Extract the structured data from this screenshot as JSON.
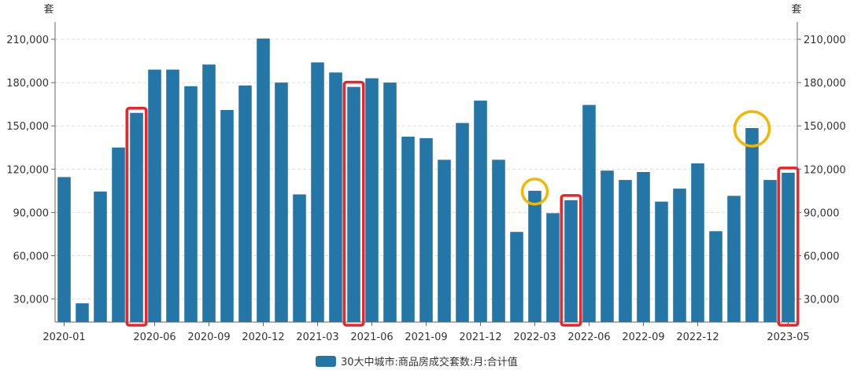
{
  "chart_data": {
    "type": "bar",
    "unit_left": "套",
    "unit_right": "套",
    "ylim": [
      14000,
      222000
    ],
    "y_ticks": [
      30000,
      60000,
      90000,
      120000,
      150000,
      180000,
      210000
    ],
    "y_tick_labels": [
      "30,000",
      "60,000",
      "90,000",
      "120,000",
      "150,000",
      "180,000",
      "210,000"
    ],
    "x_tick_labels": [
      "2020-01",
      "2020-06",
      "2020-09",
      "2020-12",
      "2021-03",
      "2021-06",
      "2021-09",
      "2021-12",
      "2022-03",
      "2022-06",
      "2022-09",
      "2022-12",
      "2023-05"
    ],
    "x_tick_months": [
      "2020-01",
      "2020-06",
      "2020-09",
      "2020-12",
      "2021-03",
      "2021-06",
      "2021-09",
      "2021-12",
      "2022-03",
      "2022-06",
      "2022-09",
      "2022-12",
      "2023-05"
    ],
    "categories": [
      "2020-01",
      "2020-02",
      "2020-03",
      "2020-04",
      "2020-05",
      "2020-06",
      "2020-07",
      "2020-08",
      "2020-09",
      "2020-10",
      "2020-11",
      "2020-12",
      "2021-01",
      "2021-02",
      "2021-03",
      "2021-04",
      "2021-05",
      "2021-06",
      "2021-07",
      "2021-08",
      "2021-09",
      "2021-10",
      "2021-11",
      "2021-12",
      "2022-01",
      "2022-02",
      "2022-03",
      "2022-04",
      "2022-05",
      "2022-06",
      "2022-07",
      "2022-08",
      "2022-09",
      "2022-10",
      "2022-11",
      "2022-12",
      "2023-01",
      "2023-02",
      "2023-03",
      "2023-04",
      "2023-05"
    ],
    "series": [
      {
        "name": "30大中城市:商品房成交套数:月:合计值",
        "color": "#2376a6",
        "values": [
          114500,
          27000,
          104500,
          135000,
          159000,
          189000,
          189000,
          177500,
          192500,
          161000,
          178000,
          210500,
          180000,
          102500,
          194000,
          187000,
          177000,
          183000,
          180000,
          142500,
          141500,
          126500,
          152000,
          167500,
          126500,
          76500,
          105000,
          89500,
          98500,
          164500,
          119000,
          112500,
          118000,
          97500,
          106500,
          124000,
          77000,
          101500,
          148500,
          112500,
          117500
        ]
      }
    ],
    "highlights": [
      {
        "shape": "rect",
        "month": "2020-05",
        "color": "#e8262a"
      },
      {
        "shape": "rect",
        "month": "2021-05",
        "color": "#e8262a"
      },
      {
        "shape": "rect",
        "month": "2022-05",
        "color": "#e8262a"
      },
      {
        "shape": "rect",
        "month": "2023-05",
        "color": "#e8262a"
      },
      {
        "shape": "circle",
        "month": "2022-03",
        "color": "#f2b705"
      },
      {
        "shape": "circle",
        "month": "2023-03",
        "color": "#f2b705"
      }
    ],
    "grid": true,
    "legend": "bottom-center"
  }
}
